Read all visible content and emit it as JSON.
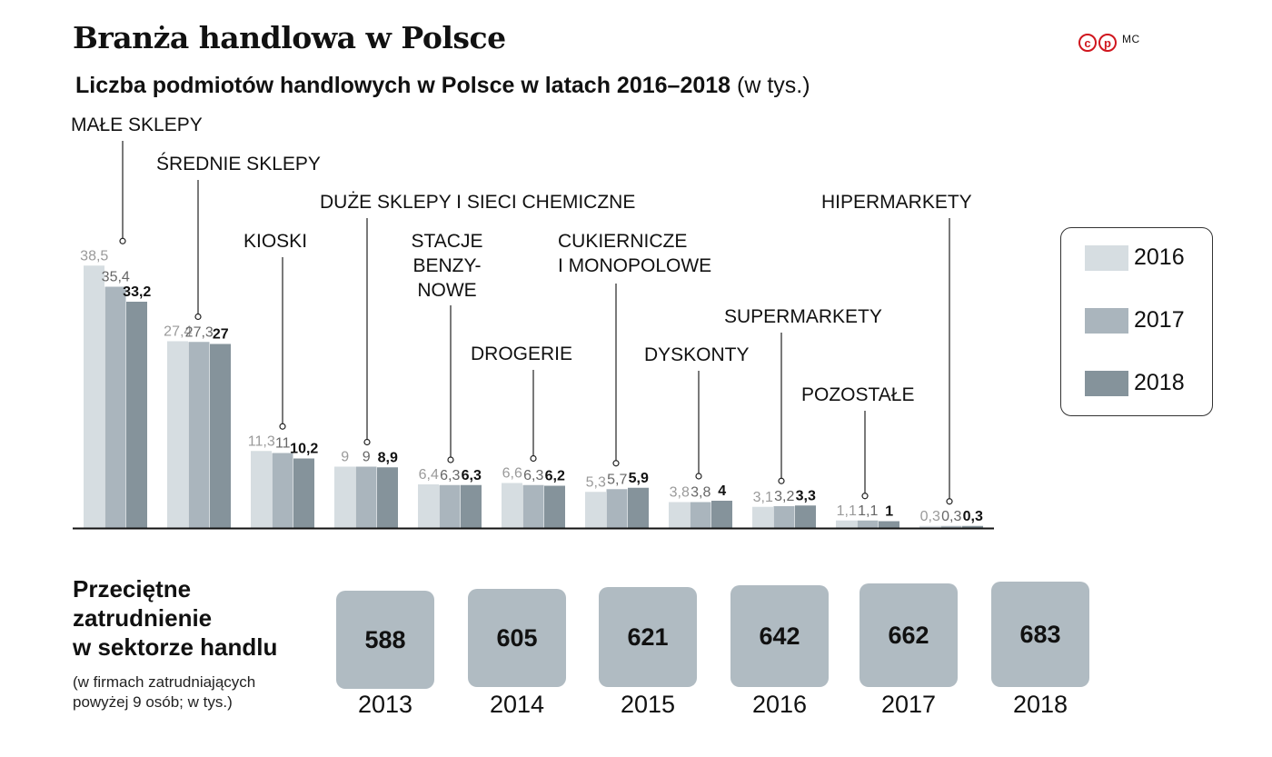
{
  "title": "Branża handlowa w Polsce",
  "subtitle": "Liczba podmiotów handlowych w Polsce w latach 2016–2018",
  "subtitle_unit": "(w tys.)",
  "logo": {
    "c": "c",
    "p": "p",
    "mc": "MC"
  },
  "colors": {
    "2016": "#d6dde1",
    "2017": "#aab5bd",
    "2018": "#85939b",
    "label2016": "#9a9a9a",
    "label2017": "#666666",
    "label2018": "#111111"
  },
  "chart_data": {
    "type": "bar",
    "ylim": [
      0,
      40
    ],
    "series_names": [
      "2016",
      "2017",
      "2018"
    ],
    "categories": [
      {
        "name": "MAŁE SKLEPY",
        "values": [
          38.5,
          35.4,
          33.2
        ],
        "labels": [
          "38,5",
          "35,4",
          "33,2"
        ]
      },
      {
        "name": "ŚREDNIE SKLEPY",
        "values": [
          27.4,
          27.3,
          27
        ],
        "labels": [
          "27,4",
          "27,3",
          "27"
        ]
      },
      {
        "name": "KIOSKI",
        "values": [
          11.3,
          11,
          10.2
        ],
        "labels": [
          "11,3",
          "11",
          "10,2"
        ]
      },
      {
        "name": "DUŻE SKLEPY I SIECI CHEMICZNE",
        "values": [
          9,
          9,
          8.9
        ],
        "labels": [
          "9",
          "9",
          "8,9"
        ]
      },
      {
        "name": "STACJE BENZY-NOWE",
        "lines": [
          "STACJE",
          "BENZY-",
          "NOWE"
        ],
        "values": [
          6.4,
          6.3,
          6.3
        ],
        "labels": [
          "6,4",
          "6,3",
          "6,3"
        ]
      },
      {
        "name": "DROGERIE",
        "values": [
          6.6,
          6.3,
          6.2
        ],
        "labels": [
          "6,6",
          "6,3",
          "6,2"
        ]
      },
      {
        "name": "CUKIERNICZE I MONOPOLOWE",
        "lines": [
          "CUKIERNICZE",
          "I MONOPOLOWE"
        ],
        "values": [
          5.3,
          5.7,
          5.9
        ],
        "labels": [
          "5,3",
          "5,7",
          "5,9"
        ]
      },
      {
        "name": "DYSKONTY",
        "values": [
          3.8,
          3.8,
          4
        ],
        "labels": [
          "3,8",
          "3,8",
          "4"
        ]
      },
      {
        "name": "SUPERMARKETY",
        "values": [
          3.1,
          3.2,
          3.3
        ],
        "labels": [
          "3,1",
          "3,2",
          "3,3"
        ]
      },
      {
        "name": "POZOSTAŁE",
        "values": [
          1.1,
          1.1,
          1
        ],
        "labels": [
          "1,1",
          "1,1",
          "1"
        ]
      },
      {
        "name": "HIPERMARKETY",
        "values": [
          0.3,
          0.3,
          0.3
        ],
        "labels": [
          "0,3",
          "0,3",
          "0,3"
        ]
      }
    ]
  },
  "legend": [
    {
      "label": "2016"
    },
    {
      "label": "2017"
    },
    {
      "label": "2018"
    }
  ],
  "employment": {
    "title_lines": [
      "Przeciętne",
      "zatrudnienie",
      "w sektorze handlu"
    ],
    "note_lines": [
      "(w firmach zatrudniających",
      "powyżej 9 osób; w tys.)"
    ],
    "years": [
      "2013",
      "2014",
      "2015",
      "2016",
      "2017",
      "2018"
    ],
    "values": [
      588,
      605,
      621,
      642,
      662,
      683
    ]
  }
}
